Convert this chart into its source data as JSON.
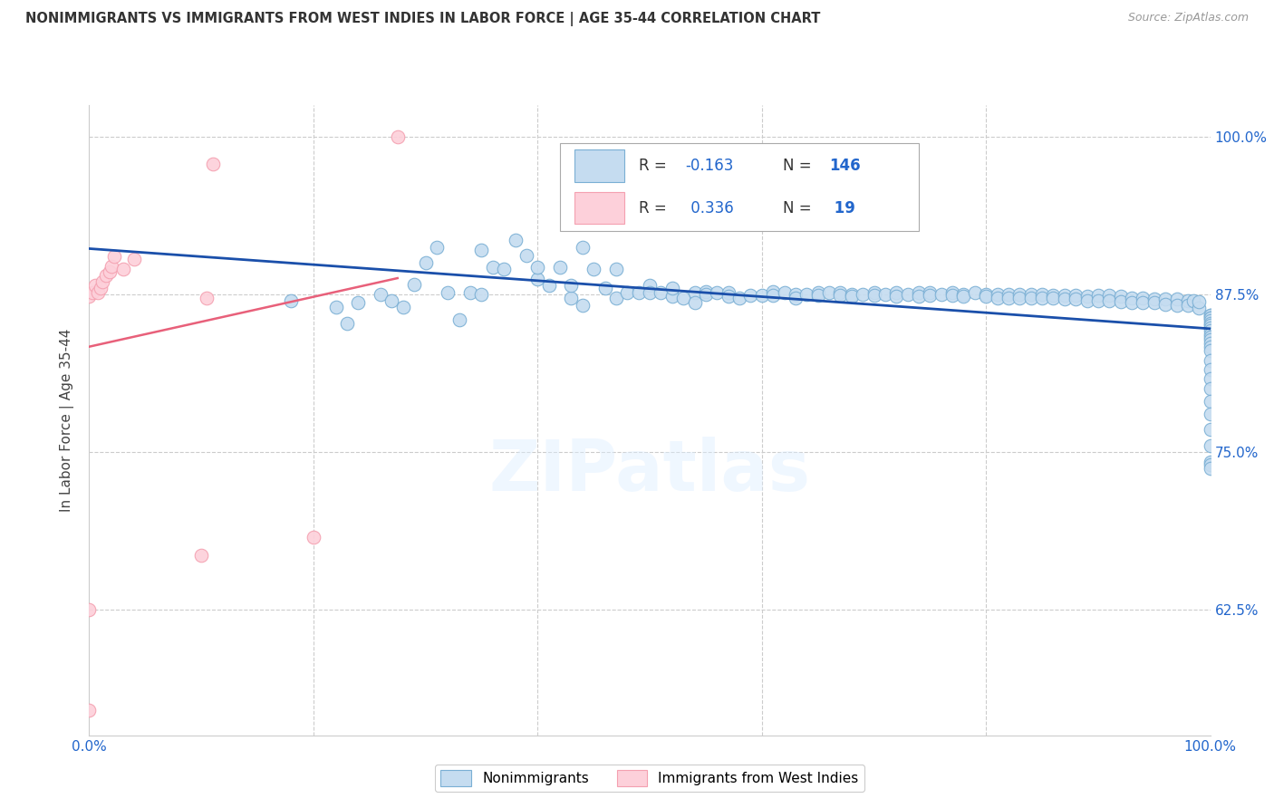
{
  "title": "NONIMMIGRANTS VS IMMIGRANTS FROM WEST INDIES IN LABOR FORCE | AGE 35-44 CORRELATION CHART",
  "source": "Source: ZipAtlas.com",
  "ylabel": "In Labor Force | Age 35-44",
  "xlim": [
    0.0,
    1.0
  ],
  "ylim": [
    0.525,
    1.025
  ],
  "yticks": [
    0.625,
    0.75,
    0.875,
    1.0
  ],
  "ytick_labels": [
    "62.5%",
    "75.0%",
    "87.5%",
    "100.0%"
  ],
  "blue_color": "#7aafd4",
  "pink_color": "#f4a0b0",
  "blue_fill": "#c5dcf0",
  "pink_fill": "#fdd0da",
  "trend_blue": "#1a4faa",
  "trend_pink": "#e8607a",
  "R_blue": -0.163,
  "N_blue": 146,
  "R_pink": 0.336,
  "N_pink": 19,
  "text_color_blue": "#2266CC",
  "background_color": "#FFFFFF",
  "grid_color": "#CCCCCC",
  "watermark": "ZIPatlas",
  "blue_scatter_x": [
    0.18,
    0.22,
    0.23,
    0.24,
    0.26,
    0.27,
    0.28,
    0.29,
    0.3,
    0.31,
    0.32,
    0.33,
    0.34,
    0.35,
    0.35,
    0.36,
    0.37,
    0.38,
    0.39,
    0.4,
    0.4,
    0.41,
    0.42,
    0.43,
    0.43,
    0.44,
    0.44,
    0.45,
    0.46,
    0.47,
    0.47,
    0.48,
    0.49,
    0.5,
    0.5,
    0.51,
    0.52,
    0.52,
    0.53,
    0.54,
    0.54,
    0.55,
    0.55,
    0.56,
    0.57,
    0.57,
    0.58,
    0.59,
    0.6,
    0.61,
    0.61,
    0.62,
    0.63,
    0.63,
    0.64,
    0.65,
    0.65,
    0.66,
    0.67,
    0.67,
    0.68,
    0.68,
    0.69,
    0.7,
    0.7,
    0.71,
    0.72,
    0.72,
    0.73,
    0.74,
    0.74,
    0.75,
    0.75,
    0.76,
    0.77,
    0.77,
    0.78,
    0.78,
    0.79,
    0.8,
    0.8,
    0.81,
    0.81,
    0.82,
    0.82,
    0.83,
    0.83,
    0.84,
    0.84,
    0.85,
    0.85,
    0.86,
    0.86,
    0.87,
    0.87,
    0.88,
    0.88,
    0.89,
    0.89,
    0.9,
    0.9,
    0.91,
    0.91,
    0.92,
    0.92,
    0.93,
    0.93,
    0.94,
    0.94,
    0.95,
    0.95,
    0.96,
    0.96,
    0.97,
    0.97,
    0.98,
    0.98,
    0.985,
    0.99,
    0.99,
    1.0,
    1.0,
    1.0,
    1.0,
    1.0,
    1.0,
    1.0,
    1.0,
    1.0,
    1.0,
    1.0,
    1.0,
    1.0,
    1.0,
    1.0,
    1.0,
    1.0,
    1.0,
    1.0,
    1.0,
    1.0,
    1.0,
    1.0,
    1.0,
    1.0,
    1.0
  ],
  "blue_scatter_y": [
    0.87,
    0.865,
    0.852,
    0.868,
    0.875,
    0.87,
    0.865,
    0.883,
    0.9,
    0.912,
    0.876,
    0.855,
    0.876,
    0.91,
    0.875,
    0.896,
    0.895,
    0.918,
    0.906,
    0.887,
    0.896,
    0.882,
    0.896,
    0.872,
    0.882,
    0.866,
    0.912,
    0.895,
    0.88,
    0.895,
    0.872,
    0.876,
    0.876,
    0.882,
    0.876,
    0.876,
    0.873,
    0.88,
    0.872,
    0.876,
    0.868,
    0.877,
    0.875,
    0.876,
    0.876,
    0.873,
    0.872,
    0.874,
    0.874,
    0.877,
    0.874,
    0.876,
    0.875,
    0.872,
    0.875,
    0.876,
    0.874,
    0.876,
    0.876,
    0.874,
    0.875,
    0.873,
    0.875,
    0.876,
    0.874,
    0.875,
    0.876,
    0.873,
    0.875,
    0.876,
    0.873,
    0.876,
    0.874,
    0.875,
    0.876,
    0.874,
    0.875,
    0.873,
    0.876,
    0.875,
    0.873,
    0.875,
    0.872,
    0.875,
    0.872,
    0.875,
    0.872,
    0.875,
    0.872,
    0.875,
    0.872,
    0.874,
    0.872,
    0.874,
    0.871,
    0.874,
    0.871,
    0.873,
    0.87,
    0.874,
    0.87,
    0.874,
    0.87,
    0.873,
    0.869,
    0.872,
    0.868,
    0.872,
    0.868,
    0.871,
    0.868,
    0.871,
    0.867,
    0.871,
    0.866,
    0.87,
    0.866,
    0.87,
    0.864,
    0.869,
    0.858,
    0.858,
    0.856,
    0.856,
    0.854,
    0.852,
    0.85,
    0.848,
    0.846,
    0.843,
    0.841,
    0.839,
    0.836,
    0.833,
    0.83,
    0.822,
    0.815,
    0.808,
    0.8,
    0.79,
    0.78,
    0.768,
    0.755,
    0.742,
    0.74,
    0.737
  ],
  "pink_scatter_x": [
    0.0,
    0.0,
    0.0,
    0.003,
    0.005,
    0.008,
    0.01,
    0.012,
    0.015,
    0.018,
    0.02,
    0.022,
    0.03,
    0.04,
    0.1,
    0.105,
    0.11,
    0.2,
    0.275
  ],
  "pink_scatter_y": [
    0.545,
    0.625,
    0.873,
    0.876,
    0.882,
    0.876,
    0.88,
    0.885,
    0.89,
    0.893,
    0.897,
    0.905,
    0.895,
    0.903,
    0.668,
    0.872,
    0.978,
    0.682,
    1.0
  ]
}
